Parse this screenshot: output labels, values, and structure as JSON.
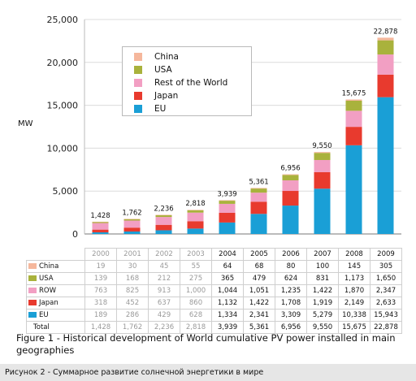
{
  "chart_data": {
    "type": "bar",
    "stacked": true,
    "ylabel": "MW",
    "ylim": [
      0,
      25000
    ],
    "yticks": [
      "0",
      "5,000",
      "10,000",
      "15,000",
      "20,000",
      "25,000"
    ],
    "categories": [
      "2000",
      "2001",
      "2002",
      "2003",
      "2004",
      "2005",
      "2006",
      "2007",
      "2008",
      "2009"
    ],
    "series": [
      {
        "name": "EU",
        "color": "#1a9fd6",
        "values": [
          189,
          286,
          429,
          628,
          1334,
          2341,
          3309,
          5279,
          10338,
          15943
        ]
      },
      {
        "name": "Japan",
        "color": "#e83a2e",
        "values": [
          318,
          452,
          637,
          860,
          1132,
          1422,
          1708,
          1919,
          2149,
          2633
        ]
      },
      {
        "name": "Rest of the World",
        "color": "#f29fc3",
        "values": [
          763,
          825,
          913,
          1000,
          1044,
          1051,
          1235,
          1422,
          1870,
          2347
        ]
      },
      {
        "name": "USA",
        "color": "#a9b23c",
        "values": [
          139,
          168,
          212,
          275,
          365,
          479,
          624,
          831,
          1173,
          1650
        ]
      },
      {
        "name": "China",
        "color": "#f5b79c",
        "values": [
          19,
          30,
          45,
          55,
          64,
          68,
          80,
          100,
          145,
          305
        ]
      }
    ],
    "totals": [
      "1,428",
      "1,762",
      "2,236",
      "2,818",
      "3,939",
      "5,361",
      "6,956",
      "9,550",
      "15,675",
      "22,878"
    ],
    "legend_placement": "top-left",
    "grid": true
  },
  "table": {
    "rows": [
      {
        "label": "China",
        "color": "#f5b79c",
        "values": [
          "19",
          "30",
          "45",
          "55",
          "64",
          "68",
          "80",
          "100",
          "145",
          "305"
        ]
      },
      {
        "label": "USA",
        "color": "#a9b23c",
        "values": [
          "139",
          "168",
          "212",
          "275",
          "365",
          "479",
          "624",
          "831",
          "1,173",
          "1,650"
        ]
      },
      {
        "label": "ROW",
        "color": "#f29fc3",
        "values": [
          "763",
          "825",
          "913",
          "1,000",
          "1,044",
          "1,051",
          "1,235",
          "1,422",
          "1,870",
          "2,347"
        ]
      },
      {
        "label": "Japan",
        "color": "#e83a2e",
        "values": [
          "318",
          "452",
          "637",
          "860",
          "1,132",
          "1,422",
          "1,708",
          "1,919",
          "2,149",
          "2,633"
        ]
      },
      {
        "label": "EU",
        "color": "#1a9fd6",
        "values": [
          "189",
          "286",
          "429",
          "628",
          "1,334",
          "2,341",
          "3,309",
          "5,279",
          "10,338",
          "15,943"
        ]
      },
      {
        "label": "Total",
        "color": "",
        "values": [
          "1,428",
          "1,762",
          "2,236",
          "2,818",
          "3,939",
          "5,361",
          "6,956",
          "9,550",
          "15,675",
          "22,878"
        ]
      }
    ]
  },
  "caption": "Figure 1 - Historical development of World cumulative PV power installed in main geographies",
  "footer": "Рисунок 2 - Суммарное развитие солнечной энергетики в мире"
}
